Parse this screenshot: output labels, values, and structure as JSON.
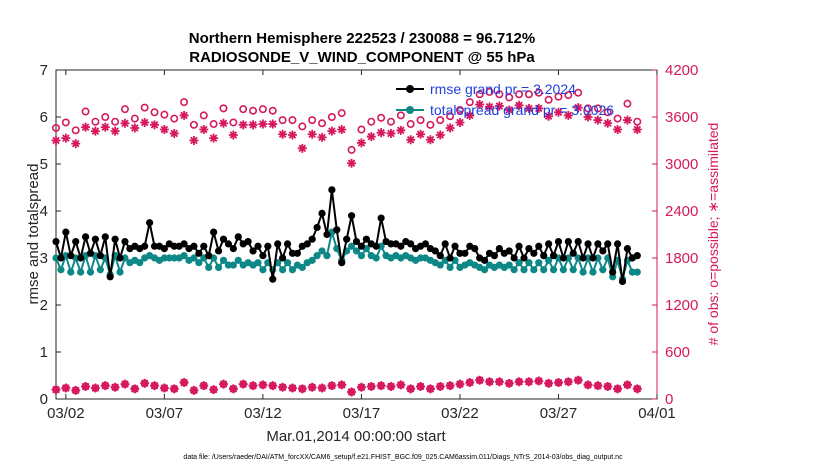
{
  "chart_data": {
    "type": "line",
    "title": "Northern Hemisphere 222523 / 230088 = 96.712%",
    "subtitle": "RADIOSONDE_V_WIND_COMPONENT @ 55 hPa",
    "xlabel": "Mar.01,2014 00:00:00 start",
    "ylabel": "rmse and totalspread",
    "ylabel_right": "# of obs: o=possible; ∗=assimilated",
    "footer": "data file: /Users/raeder/DAI/ATM_forcXX/CAM6_setup/f.e21.FHIST_BGC.f09_025.CAM6assim.011/Diags_NTrS_2014-03/obs_diag_output.nc",
    "xlim": [
      1.5,
      32
    ],
    "ylim": [
      0,
      7
    ],
    "ylim_right": [
      0,
      4200
    ],
    "x_ticks": [
      2,
      7,
      12,
      17,
      22,
      27,
      32
    ],
    "x_tick_labels": [
      "03/02",
      "03/07",
      "03/12",
      "03/17",
      "03/22",
      "03/27",
      "04/01"
    ],
    "y_ticks": [
      0,
      1,
      2,
      3,
      4,
      5,
      6,
      7
    ],
    "y_tick_labels": [
      "0",
      "1",
      "2",
      "3",
      "4",
      "5",
      "6",
      "7"
    ],
    "y_ticks_right": [
      0,
      600,
      1200,
      1800,
      2400,
      3000,
      3600,
      4200
    ],
    "y_tick_labels_right": [
      "0",
      "600",
      "1200",
      "1800",
      "2400",
      "3000",
      "3600",
      "4200"
    ],
    "legend": [
      {
        "label": "rmse grand pr = 3.2024",
        "color": "#000000"
      },
      {
        "label": "totalspread grand pr = 3.0026",
        "color": "#0e8787"
      }
    ],
    "series": [
      {
        "name": "rmse",
        "color": "#000000",
        "axis": "left",
        "values": [
          3.35,
          3.0,
          3.55,
          3.05,
          3.35,
          3.0,
          3.45,
          3.1,
          3.4,
          3.05,
          3.45,
          2.6,
          3.4,
          3.0,
          3.35,
          3.2,
          3.25,
          3.2,
          3.25,
          3.75,
          3.25,
          3.25,
          3.2,
          3.3,
          3.25,
          3.25,
          3.3,
          3.2,
          3.25,
          3.1,
          3.25,
          3.05,
          3.55,
          3.15,
          3.4,
          3.3,
          3.2,
          3.45,
          3.3,
          3.35,
          3.15,
          3.25,
          3.05,
          3.25,
          2.55,
          3.3,
          3.0,
          3.3,
          3.1,
          3.1,
          3.25,
          3.3,
          3.4,
          3.65,
          3.95,
          3.5,
          4.45,
          3.6,
          2.9,
          3.4,
          3.9,
          3.35,
          3.25,
          3.4,
          3.3,
          3.25,
          3.85,
          3.35,
          3.3,
          3.3,
          3.25,
          3.35,
          3.3,
          3.2,
          3.25,
          3.3,
          3.2,
          3.15,
          3.05,
          3.3,
          3.0,
          3.25,
          3.1,
          3.1,
          3.25,
          3.2,
          3.0,
          2.95,
          3.1,
          3.05,
          3.2,
          3.1,
          3.15,
          3.0,
          3.25,
          3.0,
          3.2,
          3.1,
          3.25,
          3.05,
          3.3,
          3.05,
          3.35,
          3.0,
          3.35,
          3.1,
          3.35,
          3.0,
          3.3,
          3.0,
          3.3,
          3.15,
          3.3,
          2.7,
          3.3,
          2.5,
          3.2,
          3.0,
          3.05
        ],
        "x_start": 1.5,
        "x_step": 0.25
      },
      {
        "name": "totalspread",
        "color": "#0e8787",
        "axis": "left",
        "values": [
          3.0,
          2.75,
          3.05,
          2.7,
          3.0,
          2.7,
          3.05,
          2.7,
          3.05,
          2.75,
          3.0,
          2.65,
          3.05,
          2.7,
          3.0,
          2.9,
          2.95,
          2.9,
          3.0,
          3.05,
          3.0,
          2.95,
          3.0,
          3.0,
          3.0,
          3.0,
          3.05,
          2.95,
          3.0,
          2.9,
          3.0,
          2.8,
          3.0,
          2.8,
          2.95,
          2.85,
          2.85,
          2.95,
          2.85,
          2.9,
          2.85,
          2.9,
          2.75,
          2.9,
          2.75,
          2.9,
          2.75,
          2.9,
          2.75,
          2.85,
          2.8,
          2.9,
          2.95,
          3.05,
          3.15,
          3.05,
          3.55,
          3.2,
          2.95,
          3.15,
          3.25,
          3.15,
          3.05,
          3.2,
          3.05,
          3.0,
          3.25,
          3.05,
          3.0,
          3.05,
          3.0,
          3.05,
          3.0,
          2.95,
          3.0,
          3.0,
          2.95,
          2.9,
          2.85,
          2.95,
          2.8,
          2.95,
          2.8,
          2.85,
          2.9,
          2.85,
          2.8,
          2.75,
          2.85,
          2.8,
          2.85,
          2.8,
          2.85,
          2.75,
          2.9,
          2.75,
          2.9,
          2.75,
          2.9,
          2.75,
          2.95,
          2.75,
          3.0,
          2.75,
          3.0,
          2.75,
          3.0,
          2.7,
          3.0,
          2.7,
          3.0,
          2.75,
          3.0,
          2.6,
          2.95,
          2.55,
          2.95,
          2.7,
          2.7
        ],
        "x_start": 1.5,
        "x_step": 0.25
      },
      {
        "name": "possible",
        "color": "#d6195e",
        "axis": "right",
        "marker": "circle",
        "x_start": 1.5,
        "x_step": 0.5,
        "values": [
          3460,
          3530,
          3430,
          3670,
          3540,
          3600,
          3540,
          3700,
          3580,
          3720,
          3660,
          3630,
          3580,
          3790,
          3500,
          3620,
          3510,
          3710,
          3530,
          3700,
          3680,
          3700,
          3680,
          3560,
          3560,
          3480,
          3560,
          3520,
          3600,
          3650,
          3180,
          3440,
          3540,
          3590,
          3540,
          3620,
          3510,
          3560,
          3500,
          3560,
          3610,
          3690,
          3790,
          3890,
          3920,
          3890,
          3850,
          3890,
          3890,
          3910,
          3820,
          3860,
          3880,
          3910,
          3710,
          3710,
          3660,
          3580,
          3770,
          3540
        ]
      },
      {
        "name": "assimilated",
        "color": "#d6195e",
        "axis": "right",
        "marker": "asterisk",
        "x_start": 1.5,
        "x_step": 0.5,
        "values": [
          3300,
          3330,
          3260,
          3470,
          3420,
          3470,
          3420,
          3520,
          3460,
          3530,
          3500,
          3440,
          3390,
          3620,
          3300,
          3440,
          3330,
          3520,
          3370,
          3500,
          3500,
          3510,
          3510,
          3380,
          3370,
          3200,
          3380,
          3340,
          3420,
          3440,
          3010,
          3270,
          3350,
          3400,
          3390,
          3430,
          3310,
          3380,
          3310,
          3370,
          3460,
          3530,
          3620,
          3760,
          3730,
          3740,
          3690,
          3750,
          3710,
          3710,
          3610,
          3660,
          3620,
          3720,
          3600,
          3560,
          3520,
          3440,
          3560,
          3440
        ],
        "low_values": [
          120,
          140,
          110,
          160,
          140,
          170,
          150,
          190,
          130,
          200,
          170,
          140,
          130,
          210,
          110,
          170,
          120,
          190,
          130,
          190,
          170,
          180,
          170,
          150,
          140,
          130,
          150,
          140,
          170,
          180,
          90,
          150,
          160,
          170,
          160,
          180,
          130,
          160,
          130,
          160,
          170,
          190,
          210,
          240,
          220,
          220,
          200,
          220,
          220,
          230,
          200,
          210,
          220,
          240,
          180,
          170,
          160,
          130,
          180,
          130
        ]
      }
    ]
  }
}
